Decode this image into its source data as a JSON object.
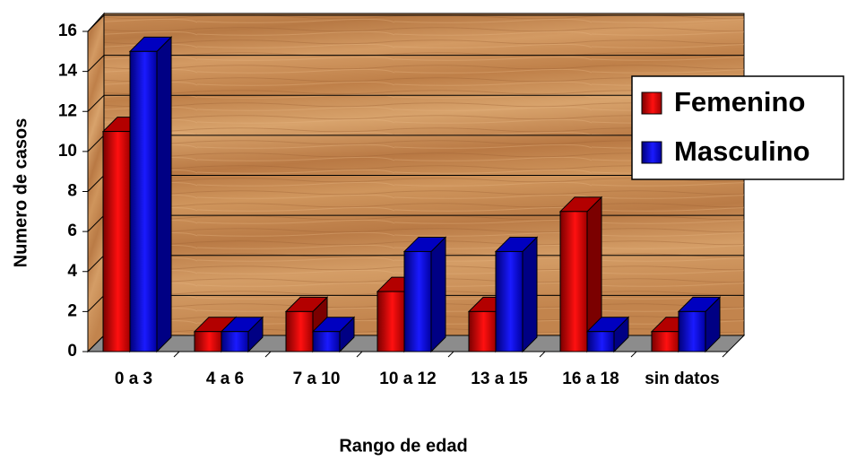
{
  "chart_data": {
    "type": "bar3d",
    "categories": [
      "0 a 3",
      "4 a 6",
      "7 a 10",
      "10 a 12",
      "13 a 15",
      "16 a 18",
      "sin datos"
    ],
    "series": [
      {
        "name": "Femenino",
        "color": "#e00000",
        "values": [
          11,
          1,
          2,
          3,
          2,
          7,
          1
        ]
      },
      {
        "name": "Masculino",
        "color": "#0000f0",
        "values": [
          15,
          1,
          1,
          5,
          5,
          1,
          2
        ]
      }
    ],
    "ylim": [
      0,
      16
    ],
    "yticks": [
      0,
      2,
      4,
      6,
      8,
      10,
      12,
      14,
      16
    ],
    "x_label": "Rango de edad",
    "y_label": "Numero de casos",
    "grid": true,
    "legend": "right"
  }
}
